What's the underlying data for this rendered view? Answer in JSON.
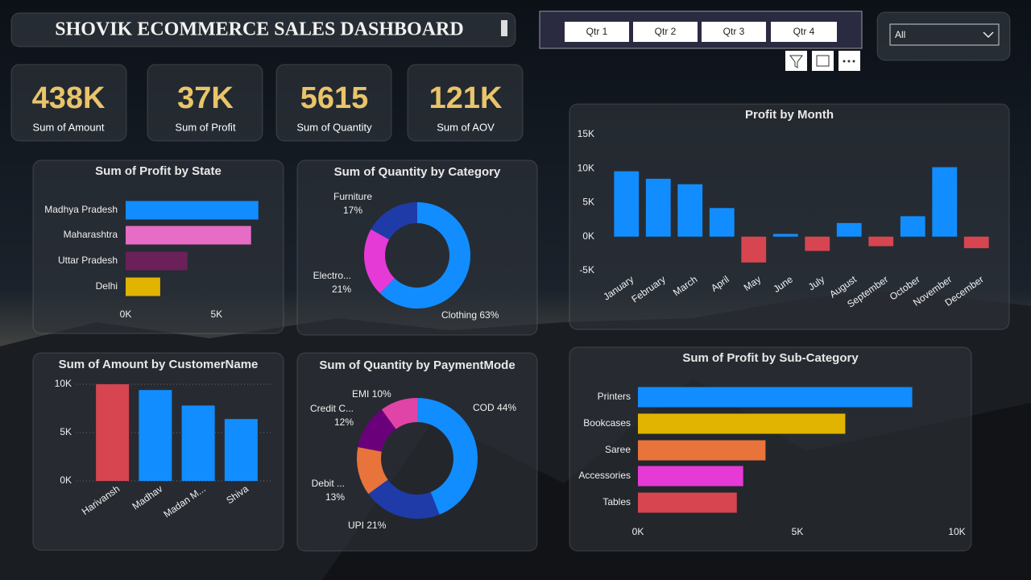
{
  "title": "SHOVIK ECOMMERCE SALES DASHBOARD",
  "slicer": {
    "buttons": [
      "Qtr 1",
      "Qtr 2",
      "Qtr 3",
      "Qtr 4"
    ],
    "dropdown": "All"
  },
  "kpis": [
    {
      "value": "438K",
      "label": "Sum of Amount"
    },
    {
      "value": "37K",
      "label": "Sum of Profit"
    },
    {
      "value": "5615",
      "label": "Sum of Quantity"
    },
    {
      "value": "121K",
      "label": "Sum of AOV"
    }
  ],
  "chart_data": [
    {
      "type": "barh",
      "title": "Sum of Profit by State",
      "categories": [
        "Madhya Pradesh",
        "Maharashtra",
        "Uttar Pradesh",
        "Delhi"
      ],
      "values": [
        7300,
        6900,
        3400,
        1900
      ],
      "colors": [
        "#118dff",
        "#e66cc6",
        "#6b2059",
        "#e0b400"
      ],
      "xlim": [
        0,
        7400
      ],
      "xticks": [
        {
          "value": 0,
          "label": "0K"
        },
        {
          "value": 5000,
          "label": "5K"
        }
      ],
      "grid": false
    },
    {
      "type": "donut",
      "title": "Sum of Quantity by Category",
      "categories": [
        "Clothing",
        "Electro...",
        "Furniture"
      ],
      "values": [
        63,
        21,
        17
      ],
      "value_labels": [
        "63%",
        "21%",
        "17%"
      ],
      "colors": [
        "#118dff",
        "#e63ad6",
        "#1f3ba8"
      ]
    },
    {
      "type": "bar",
      "title": "Profit by Month",
      "categories": [
        "January",
        "February",
        "March",
        "April",
        "May",
        "June",
        "July",
        "August",
        "September",
        "October",
        "November",
        "December"
      ],
      "values": [
        9600,
        8500,
        7700,
        4200,
        -3800,
        400,
        -2100,
        2000,
        -1400,
        3000,
        10200,
        -1700
      ],
      "color": "#118dff",
      "negative_color": "#d64550",
      "ylim": [
        -5000,
        15000
      ],
      "yticks": [
        {
          "value": -5000,
          "label": "-5K"
        },
        {
          "value": 0,
          "label": "0K"
        },
        {
          "value": 5000,
          "label": "5K"
        },
        {
          "value": 10000,
          "label": "10K"
        },
        {
          "value": 15000,
          "label": "15K"
        }
      ],
      "grid": false
    },
    {
      "type": "bar",
      "title": "Sum of Amount by CustomerName",
      "categories": [
        "Harivansh",
        "Madhav",
        "Madan M...",
        "Shiva"
      ],
      "values": [
        10000,
        9400,
        7800,
        6400
      ],
      "colors": [
        "#d64550",
        "#118dff",
        "#118dff",
        "#118dff"
      ],
      "ylim": [
        0,
        10000
      ],
      "yticks": [
        {
          "value": 0,
          "label": "0K"
        },
        {
          "value": 5000,
          "label": "5K"
        },
        {
          "value": 10000,
          "label": "10K"
        }
      ],
      "grid": true
    },
    {
      "type": "donut",
      "title": "Sum of Quantity by PaymentMode",
      "categories": [
        "COD",
        "UPI",
        "Debit ...",
        "Credit C...",
        "EMI"
      ],
      "values": [
        44,
        21,
        13,
        12,
        10
      ],
      "value_labels": [
        "44%",
        "21%",
        "13%",
        "12%",
        "10%"
      ],
      "colors": [
        "#118dff",
        "#1f3ba8",
        "#e8743b",
        "#6b007b",
        "#e044a7"
      ]
    },
    {
      "type": "barh",
      "title": "Sum of Profit by Sub-Category",
      "categories": [
        "Printers",
        "Bookcases",
        "Saree",
        "Accessories",
        "Tables"
      ],
      "values": [
        8600,
        6500,
        4000,
        3300,
        3100
      ],
      "colors": [
        "#118dff",
        "#e0b400",
        "#e8743b",
        "#e63ad6",
        "#d64550"
      ],
      "xlim": [
        0,
        10000
      ],
      "xticks": [
        {
          "value": 0,
          "label": "0K"
        },
        {
          "value": 5000,
          "label": "5K"
        },
        {
          "value": 10000,
          "label": "10K"
        }
      ],
      "grid": false
    }
  ]
}
